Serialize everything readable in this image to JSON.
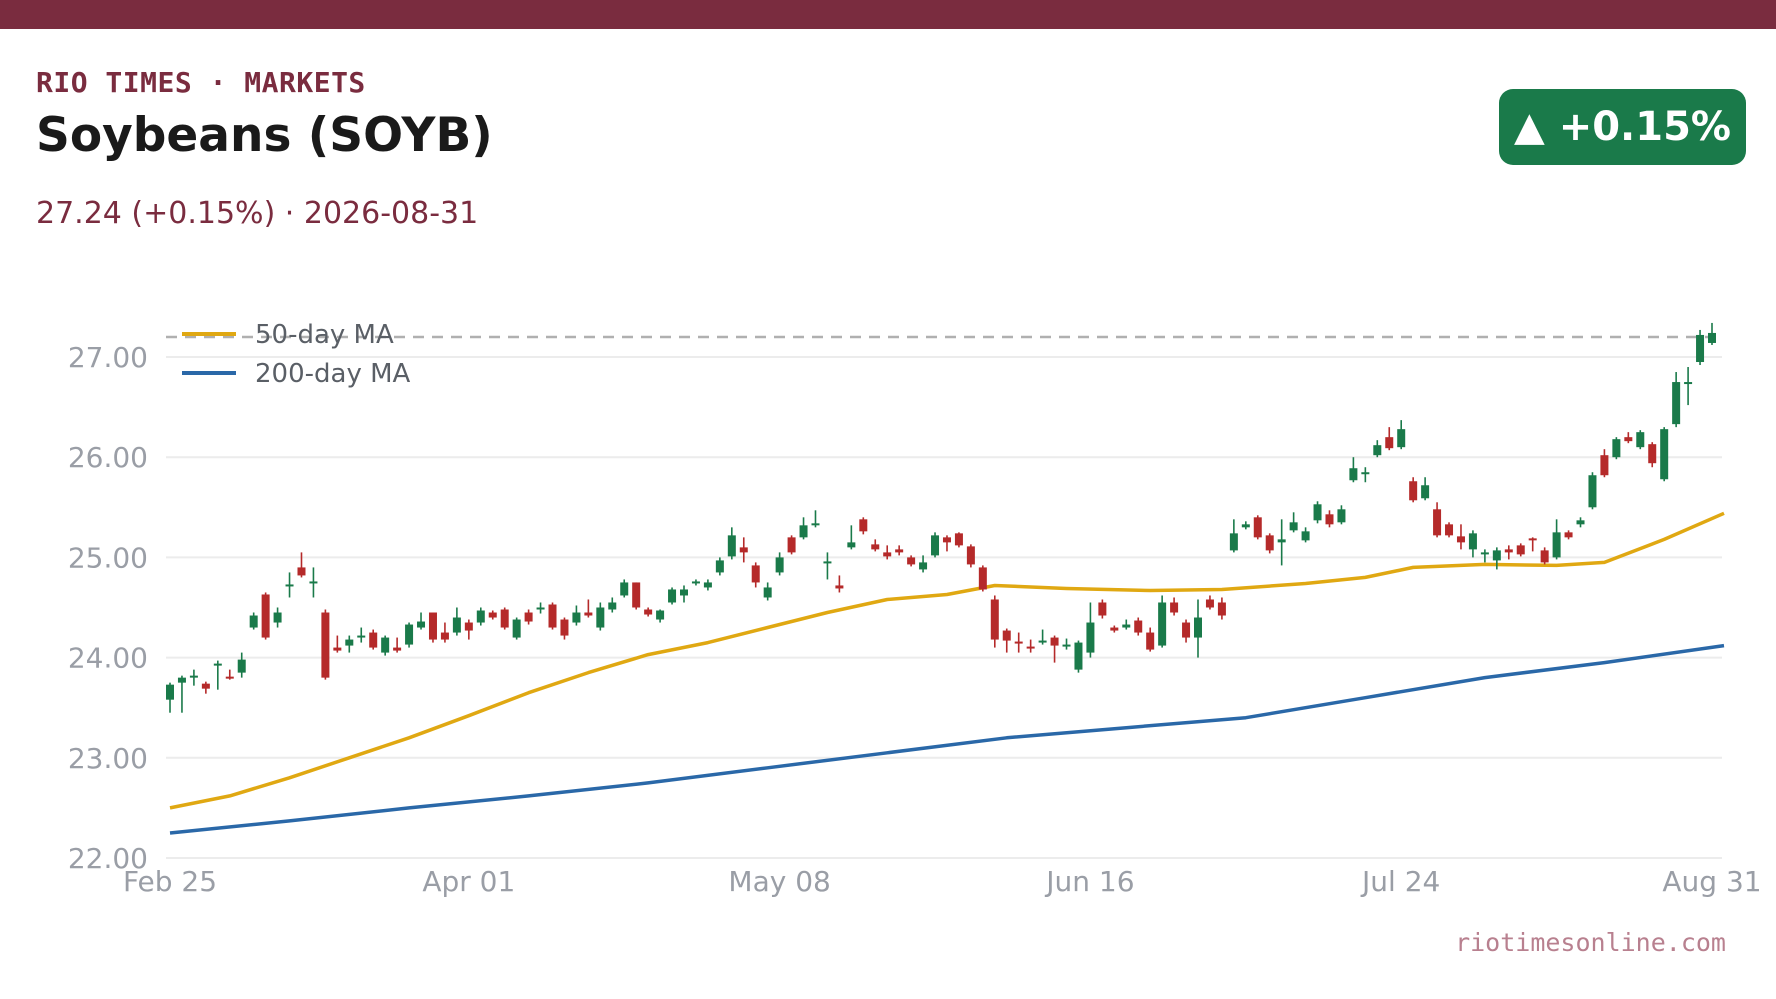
{
  "header": {
    "kicker": "RIO TIMES · MARKETS",
    "title": "Soybeans (SOYB)",
    "subtitle": "27.24 (+0.15%)  ·  2026-08-31",
    "badge": "▲ +0.15%"
  },
  "footer": {
    "source": "riotimesonline.com"
  },
  "colors": {
    "brand": "#7a2c3f",
    "up": "#1a7a4a",
    "down": "#b52a2a",
    "ma50": "#e0a812",
    "ma200": "#2a68a8",
    "reference": "#b0b0b0",
    "grid": "#ececec"
  },
  "chart_data": {
    "type": "candlestick",
    "title": "Soybeans (SOYB)",
    "last_close": 27.24,
    "change_pct": 0.15,
    "date": "2026-08-31",
    "ylim": [
      22.0,
      27.5
    ],
    "y_ticks": [
      "22.00",
      "23.00",
      "24.00",
      "25.00",
      "26.00",
      "27.00"
    ],
    "x_ticks": [
      "Feb 25",
      "Apr 01",
      "May 08",
      "Jun 16",
      "Jul 24",
      "Aug 31"
    ],
    "x_tick_index": [
      0,
      25,
      51,
      77,
      103,
      129
    ],
    "reference_line": 27.2,
    "grid": true,
    "legend_position": "top-left",
    "legend": [
      "50-day MA",
      "200-day MA"
    ],
    "series": [
      {
        "name": "50-day MA",
        "values": [
          [
            0,
            22.5
          ],
          [
            5,
            22.62
          ],
          [
            10,
            22.8
          ],
          [
            15,
            23.0
          ],
          [
            20,
            23.2
          ],
          [
            25,
            23.42
          ],
          [
            30,
            23.65
          ],
          [
            35,
            23.85
          ],
          [
            40,
            24.03
          ],
          [
            45,
            24.15
          ],
          [
            50,
            24.3
          ],
          [
            55,
            24.45
          ],
          [
            60,
            24.58
          ],
          [
            65,
            24.63
          ],
          [
            69,
            24.72
          ],
          [
            75,
            24.69
          ],
          [
            82,
            24.67
          ],
          [
            88,
            24.68
          ],
          [
            95,
            24.74
          ],
          [
            100,
            24.8
          ],
          [
            104,
            24.9
          ],
          [
            110,
            24.93
          ],
          [
            116,
            24.92
          ],
          [
            120,
            24.95
          ],
          [
            125,
            25.18
          ],
          [
            130,
            25.44
          ]
        ]
      },
      {
        "name": "200-day MA",
        "values": [
          [
            0,
            22.25
          ],
          [
            10,
            22.37
          ],
          [
            20,
            22.5
          ],
          [
            30,
            22.62
          ],
          [
            40,
            22.75
          ],
          [
            50,
            22.9
          ],
          [
            60,
            23.05
          ],
          [
            70,
            23.2
          ],
          [
            80,
            23.3
          ],
          [
            90,
            23.4
          ],
          [
            100,
            23.6
          ],
          [
            110,
            23.8
          ],
          [
            120,
            23.95
          ],
          [
            130,
            24.12
          ]
        ]
      }
    ],
    "candles": [
      [
        23.58,
        23.73,
        23.45,
        23.75
      ],
      [
        23.75,
        23.8,
        23.45,
        23.82
      ],
      [
        23.8,
        23.82,
        23.72,
        23.88
      ],
      [
        23.74,
        23.69,
        23.64,
        23.76
      ],
      [
        23.92,
        23.94,
        23.68,
        23.97
      ],
      [
        23.81,
        23.8,
        23.78,
        23.88
      ],
      [
        23.85,
        23.98,
        23.8,
        24.05
      ],
      [
        24.3,
        24.42,
        24.28,
        24.45
      ],
      [
        24.63,
        24.2,
        24.18,
        24.65
      ],
      [
        24.35,
        24.45,
        24.3,
        24.5
      ],
      [
        24.72,
        24.73,
        24.6,
        24.85
      ],
      [
        24.9,
        24.82,
        24.8,
        25.05
      ],
      [
        24.75,
        24.76,
        24.6,
        24.9
      ],
      [
        24.45,
        23.8,
        23.78,
        24.48
      ],
      [
        24.1,
        24.07,
        24.05,
        24.22
      ],
      [
        24.12,
        24.18,
        24.05,
        24.22
      ],
      [
        24.2,
        24.22,
        24.15,
        24.3
      ],
      [
        24.25,
        24.1,
        24.08,
        24.28
      ],
      [
        24.05,
        24.2,
        24.02,
        24.22
      ],
      [
        24.1,
        24.07,
        24.05,
        24.2
      ],
      [
        24.13,
        24.33,
        24.1,
        24.35
      ],
      [
        24.3,
        24.36,
        24.28,
        24.45
      ],
      [
        24.45,
        24.18,
        24.15,
        24.45
      ],
      [
        24.25,
        24.18,
        24.15,
        24.35
      ],
      [
        24.25,
        24.4,
        24.22,
        24.5
      ],
      [
        24.35,
        24.27,
        24.18,
        24.38
      ],
      [
        24.35,
        24.47,
        24.32,
        24.5
      ],
      [
        24.45,
        24.4,
        24.38,
        24.47
      ],
      [
        24.48,
        24.3,
        24.28,
        24.5
      ],
      [
        24.2,
        24.38,
        24.18,
        24.4
      ],
      [
        24.45,
        24.36,
        24.33,
        24.48
      ],
      [
        24.48,
        24.5,
        24.44,
        24.55
      ],
      [
        24.53,
        24.3,
        24.28,
        24.55
      ],
      [
        24.38,
        24.22,
        24.18,
        24.4
      ],
      [
        24.35,
        24.45,
        24.32,
        24.52
      ],
      [
        24.45,
        24.42,
        24.4,
        24.58
      ],
      [
        24.3,
        24.5,
        24.27,
        24.55
      ],
      [
        24.48,
        24.55,
        24.45,
        24.6
      ],
      [
        24.62,
        24.75,
        24.6,
        24.78
      ],
      [
        24.75,
        24.5,
        24.48,
        24.75
      ],
      [
        24.48,
        24.43,
        24.41,
        24.5
      ],
      [
        24.38,
        24.47,
        24.35,
        24.48
      ],
      [
        24.55,
        24.68,
        24.53,
        24.7
      ],
      [
        24.62,
        24.68,
        24.55,
        24.72
      ],
      [
        24.75,
        24.76,
        24.72,
        24.78
      ],
      [
        24.7,
        24.75,
        24.67,
        24.78
      ],
      [
        24.85,
        24.97,
        24.82,
        25.0
      ],
      [
        25.01,
        25.22,
        24.98,
        25.3
      ],
      [
        25.1,
        25.05,
        24.95,
        25.2
      ],
      [
        24.92,
        24.75,
        24.7,
        24.95
      ],
      [
        24.6,
        24.7,
        24.57,
        24.75
      ],
      [
        24.85,
        25.0,
        24.82,
        25.05
      ],
      [
        25.2,
        25.05,
        25.03,
        25.22
      ],
      [
        25.2,
        25.32,
        25.18,
        25.4
      ],
      [
        25.33,
        25.34,
        25.3,
        25.47
      ],
      [
        24.95,
        24.96,
        24.78,
        25.05
      ],
      [
        24.72,
        24.69,
        24.65,
        24.82
      ],
      [
        25.1,
        25.15,
        25.08,
        25.32
      ],
      [
        25.38,
        25.26,
        25.23,
        25.4
      ],
      [
        25.13,
        25.08,
        25.06,
        25.18
      ],
      [
        25.05,
        25.01,
        24.98,
        25.12
      ],
      [
        25.08,
        25.05,
        25.02,
        25.12
      ],
      [
        25.0,
        24.93,
        24.91,
        25.02
      ],
      [
        24.88,
        24.95,
        24.85,
        25.02
      ],
      [
        25.02,
        25.22,
        25.0,
        25.25
      ],
      [
        25.2,
        25.15,
        25.06,
        25.22
      ],
      [
        25.24,
        25.12,
        25.1,
        25.25
      ],
      [
        25.11,
        24.93,
        24.9,
        25.13
      ],
      [
        24.9,
        24.68,
        24.66,
        24.92
      ],
      [
        24.58,
        24.18,
        24.1,
        24.62
      ],
      [
        24.27,
        24.17,
        24.05,
        24.29
      ],
      [
        24.16,
        24.14,
        24.05,
        24.25
      ],
      [
        24.11,
        24.1,
        24.05,
        24.18
      ],
      [
        24.15,
        24.17,
        24.13,
        24.28
      ],
      [
        24.2,
        24.12,
        23.95,
        24.22
      ],
      [
        24.12,
        24.13,
        24.08,
        24.19
      ],
      [
        23.88,
        24.15,
        23.85,
        24.17
      ],
      [
        24.05,
        24.35,
        24.0,
        24.55
      ],
      [
        24.55,
        24.42,
        24.39,
        24.58
      ],
      [
        24.3,
        24.27,
        24.25,
        24.32
      ],
      [
        24.3,
        24.33,
        24.28,
        24.38
      ],
      [
        24.37,
        24.25,
        24.22,
        24.4
      ],
      [
        24.25,
        24.08,
        24.06,
        24.3
      ],
      [
        24.12,
        24.55,
        24.1,
        24.62
      ],
      [
        24.55,
        24.45,
        24.42,
        24.6
      ],
      [
        24.35,
        24.2,
        24.15,
        24.38
      ],
      [
        24.2,
        24.4,
        24.0,
        24.58
      ],
      [
        24.58,
        24.5,
        24.48,
        24.62
      ],
      [
        24.55,
        24.42,
        24.38,
        24.6
      ],
      [
        25.07,
        25.24,
        25.05,
        25.38
      ],
      [
        25.3,
        25.33,
        25.28,
        25.36
      ],
      [
        25.4,
        25.2,
        25.18,
        25.42
      ],
      [
        25.22,
        25.07,
        25.04,
        25.24
      ],
      [
        25.15,
        25.18,
        24.92,
        25.38
      ],
      [
        25.27,
        25.35,
        25.25,
        25.45
      ],
      [
        25.17,
        25.26,
        25.15,
        25.3
      ],
      [
        25.37,
        25.53,
        25.34,
        25.56
      ],
      [
        25.43,
        25.33,
        25.3,
        25.47
      ],
      [
        25.35,
        25.48,
        25.33,
        25.52
      ],
      [
        25.77,
        25.89,
        25.75,
        26.0
      ],
      [
        25.83,
        25.85,
        25.75,
        25.9
      ],
      [
        26.02,
        26.12,
        26.0,
        26.17
      ],
      [
        26.2,
        26.09,
        26.07,
        26.3
      ],
      [
        26.1,
        26.28,
        26.08,
        26.37
      ],
      [
        25.76,
        25.57,
        25.55,
        25.8
      ],
      [
        25.59,
        25.72,
        25.57,
        25.8
      ],
      [
        25.48,
        25.22,
        25.2,
        25.55
      ],
      [
        25.33,
        25.22,
        25.2,
        25.35
      ],
      [
        25.21,
        25.15,
        25.08,
        25.33
      ],
      [
        25.08,
        25.24,
        25.0,
        25.27
      ],
      [
        25.04,
        25.05,
        24.95,
        25.08
      ],
      [
        24.97,
        25.07,
        24.88,
        25.1
      ],
      [
        25.08,
        25.05,
        24.98,
        25.12
      ],
      [
        25.12,
        25.03,
        25.01,
        25.14
      ],
      [
        25.19,
        25.18,
        25.06,
        25.2
      ],
      [
        25.07,
        24.95,
        24.93,
        25.1
      ],
      [
        25.0,
        25.25,
        24.98,
        25.38
      ],
      [
        25.25,
        25.2,
        25.18,
        25.27
      ],
      [
        25.33,
        25.37,
        25.3,
        25.4
      ],
      [
        25.5,
        25.82,
        25.48,
        25.85
      ],
      [
        26.02,
        25.82,
        25.8,
        26.08
      ],
      [
        26.0,
        26.18,
        25.98,
        26.2
      ],
      [
        26.2,
        26.16,
        26.14,
        26.25
      ],
      [
        26.1,
        26.25,
        26.08,
        26.27
      ],
      [
        26.13,
        25.94,
        25.9,
        26.15
      ],
      [
        25.78,
        26.28,
        25.76,
        26.3
      ],
      [
        26.33,
        26.75,
        26.3,
        26.85
      ],
      [
        26.73,
        26.75,
        26.52,
        26.9
      ],
      [
        26.95,
        27.22,
        26.92,
        27.27
      ],
      [
        27.14,
        27.24,
        27.12,
        27.34
      ]
    ]
  }
}
